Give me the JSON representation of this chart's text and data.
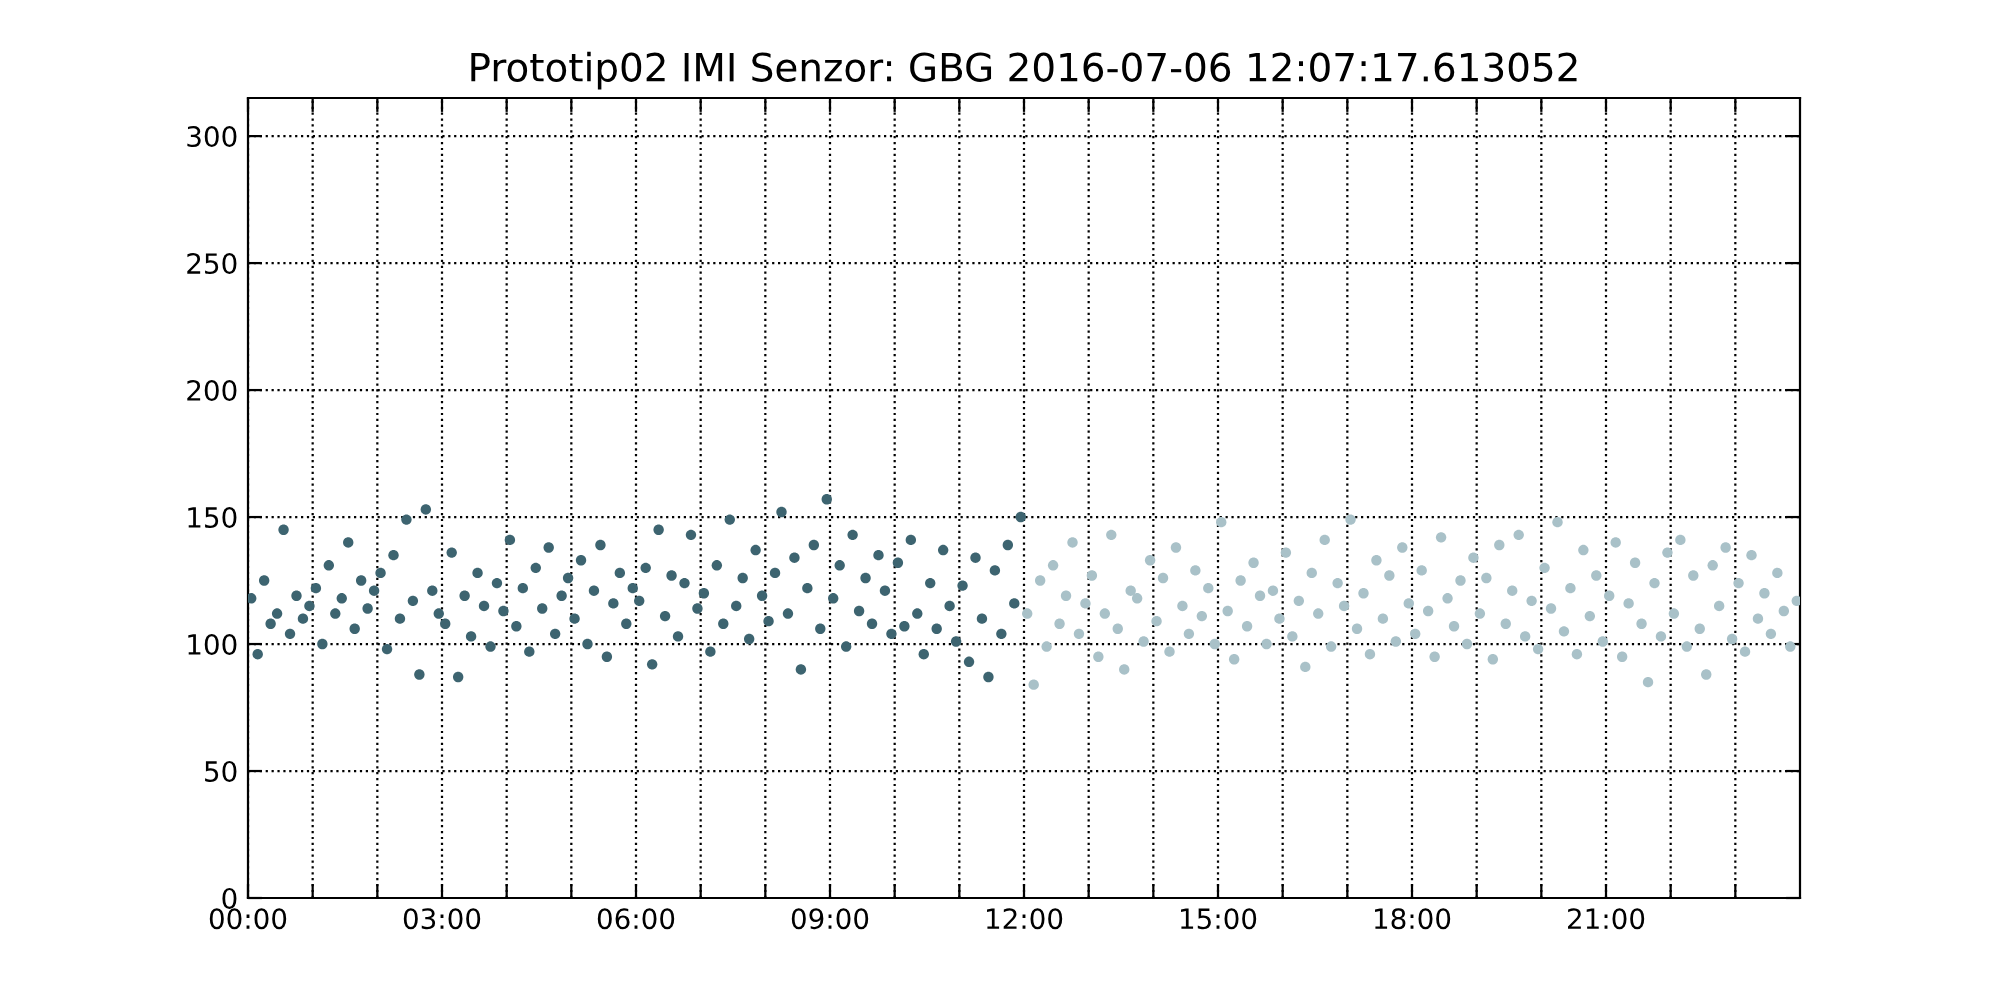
{
  "chart_data": {
    "type": "scatter",
    "title": "Prototip02 IMI Senzor: GBG 2016-07-06 12:07:17.613052",
    "xlim": [
      0,
      24
    ],
    "ylim": [
      0,
      315
    ],
    "xticks": [
      {
        "value": 0,
        "label": "00:00"
      },
      {
        "value": 1,
        "label": null
      },
      {
        "value": 2,
        "label": null
      },
      {
        "value": 3,
        "label": "03:00"
      },
      {
        "value": 4,
        "label": null
      },
      {
        "value": 5,
        "label": null
      },
      {
        "value": 6,
        "label": "06:00"
      },
      {
        "value": 7,
        "label": null
      },
      {
        "value": 8,
        "label": null
      },
      {
        "value": 9,
        "label": "09:00"
      },
      {
        "value": 10,
        "label": null
      },
      {
        "value": 11,
        "label": null
      },
      {
        "value": 12,
        "label": "12:00"
      },
      {
        "value": 13,
        "label": null
      },
      {
        "value": 14,
        "label": null
      },
      {
        "value": 15,
        "label": "15:00"
      },
      {
        "value": 16,
        "label": null
      },
      {
        "value": 17,
        "label": null
      },
      {
        "value": 18,
        "label": "18:00"
      },
      {
        "value": 19,
        "label": null
      },
      {
        "value": 20,
        "label": null
      },
      {
        "value": 21,
        "label": "21:00"
      },
      {
        "value": 22,
        "label": null
      },
      {
        "value": 23,
        "label": null
      }
    ],
    "yticks": [
      0,
      50,
      100,
      150,
      200,
      250,
      300
    ],
    "grid": true,
    "marker": "circle",
    "series": [
      {
        "color": "#3d6470",
        "x": [
          0.05,
          0.15,
          0.25,
          0.35,
          0.45,
          0.55,
          0.65,
          0.75,
          0.85,
          0.95,
          1.05,
          1.15,
          1.25,
          1.35,
          1.45,
          1.55,
          1.65,
          1.75,
          1.85,
          1.95,
          2.05,
          2.15,
          2.25,
          2.35,
          2.45,
          2.55,
          2.65,
          2.75,
          2.85,
          2.95,
          3.05,
          3.15,
          3.25,
          3.35,
          3.45,
          3.55,
          3.65,
          3.75,
          3.85,
          3.95,
          4.05,
          4.15,
          4.25,
          4.35,
          4.45,
          4.55,
          4.65,
          4.75,
          4.85,
          4.95,
          5.05,
          5.15,
          5.25,
          5.35,
          5.45,
          5.55,
          5.65,
          5.75,
          5.85,
          5.95,
          6.05,
          6.15,
          6.25,
          6.35,
          6.45,
          6.55,
          6.65,
          6.75,
          6.85,
          6.95,
          7.05,
          7.15,
          7.25,
          7.35,
          7.45,
          7.55,
          7.65,
          7.75,
          7.85,
          7.95,
          8.05,
          8.15,
          8.25,
          8.35,
          8.45,
          8.55,
          8.65,
          8.75,
          8.85,
          8.95,
          9.05,
          9.15,
          9.25,
          9.35,
          9.45,
          9.55,
          9.65,
          9.75,
          9.85,
          9.95,
          10.05,
          10.15,
          10.25,
          10.35,
          10.45,
          10.55,
          10.65,
          10.75,
          10.85,
          10.95,
          11.05,
          11.15,
          11.25,
          11.35,
          11.45,
          11.55,
          11.65,
          11.75,
          11.85,
          11.95
        ],
        "values": [
          118,
          96,
          125,
          108,
          112,
          145,
          104,
          119,
          110,
          115,
          122,
          100,
          131,
          112,
          118,
          140,
          106,
          125,
          114,
          121,
          128,
          98,
          135,
          110,
          149,
          117,
          88,
          153,
          121,
          112,
          108,
          136,
          87,
          119,
          103,
          128,
          115,
          99,
          124,
          113,
          141,
          107,
          122,
          97,
          130,
          114,
          138,
          104,
          119,
          126,
          110,
          133,
          100,
          121,
          139,
          95,
          116,
          128,
          108,
          122,
          117,
          130,
          92,
          145,
          111,
          127,
          103,
          124,
          143,
          114,
          120,
          97,
          131,
          108,
          149,
          115,
          126,
          102,
          137,
          119,
          109,
          128,
          152,
          112,
          134,
          90,
          122,
          139,
          106,
          157,
          118,
          131,
          99,
          143,
          113,
          126,
          108,
          135,
          121,
          104,
          132,
          107,
          141,
          112,
          96,
          124,
          106,
          137,
          115,
          101,
          123,
          93,
          134,
          110,
          87,
          129,
          104,
          139,
          116,
          150
        ]
      },
      {
        "color": "#a9c1c8",
        "x": [
          12.05,
          12.15,
          12.25,
          12.35,
          12.45,
          12.55,
          12.65,
          12.75,
          12.85,
          12.95,
          13.05,
          13.15,
          13.25,
          13.35,
          13.45,
          13.55,
          13.65,
          13.75,
          13.85,
          13.95,
          14.05,
          14.15,
          14.25,
          14.35,
          14.45,
          14.55,
          14.65,
          14.75,
          14.85,
          14.95,
          15.05,
          15.15,
          15.25,
          15.35,
          15.45,
          15.55,
          15.65,
          15.75,
          15.85,
          15.95,
          16.05,
          16.15,
          16.25,
          16.35,
          16.45,
          16.55,
          16.65,
          16.75,
          16.85,
          16.95,
          17.05,
          17.15,
          17.25,
          17.35,
          17.45,
          17.55,
          17.65,
          17.75,
          17.85,
          17.95,
          18.05,
          18.15,
          18.25,
          18.35,
          18.45,
          18.55,
          18.65,
          18.75,
          18.85,
          18.95,
          19.05,
          19.15,
          19.25,
          19.35,
          19.45,
          19.55,
          19.65,
          19.75,
          19.85,
          19.95,
          20.05,
          20.15,
          20.25,
          20.35,
          20.45,
          20.55,
          20.65,
          20.75,
          20.85,
          20.95,
          21.05,
          21.15,
          21.25,
          21.35,
          21.45,
          21.55,
          21.65,
          21.75,
          21.85,
          21.95,
          22.05,
          22.15,
          22.25,
          22.35,
          22.45,
          22.55,
          22.65,
          22.75,
          22.85,
          22.95,
          23.05,
          23.15,
          23.25,
          23.35,
          23.45,
          23.55,
          23.65,
          23.75,
          23.85,
          23.95
        ],
        "values": [
          112,
          84,
          125,
          99,
          131,
          108,
          119,
          140,
          104,
          116,
          127,
          95,
          112,
          143,
          106,
          90,
          121,
          118,
          101,
          133,
          109,
          126,
          97,
          138,
          115,
          104,
          129,
          111,
          122,
          100,
          148,
          113,
          94,
          125,
          107,
          132,
          119,
          100,
          121,
          110,
          136,
          103,
          117,
          91,
          128,
          112,
          141,
          99,
          124,
          115,
          149,
          106,
          120,
          96,
          133,
          110,
          127,
          101,
          138,
          116,
          104,
          129,
          113,
          95,
          142,
          118,
          107,
          125,
          100,
          134,
          112,
          126,
          94,
          139,
          108,
          121,
          143,
          103,
          117,
          98,
          130,
          114,
          148,
          105,
          122,
          96,
          137,
          111,
          127,
          101,
          119,
          140,
          95,
          116,
          132,
          108,
          85,
          124,
          103,
          136,
          112,
          141,
          99,
          127,
          106,
          88,
          131,
          115,
          138,
          102,
          124,
          97,
          135,
          110,
          120,
          104,
          128,
          113,
          99,
          117
        ]
      }
    ]
  }
}
